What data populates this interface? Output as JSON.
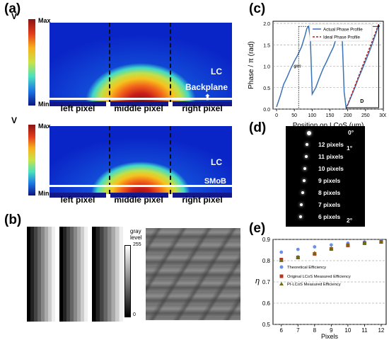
{
  "panel_a": {
    "label": "(a)",
    "colorbar": {
      "unit": "V",
      "max": "Max",
      "min": "Min"
    },
    "top": {
      "layer": "LC",
      "backplane": "Backplane"
    },
    "bottom": {
      "layer": "LC",
      "backplane": "SMoB"
    },
    "pixels": [
      "left pixel",
      "middle pixel",
      "right pixel"
    ]
  },
  "panel_b": {
    "label": "(b)",
    "colorbar": {
      "title_1": "gray",
      "title_2": "level",
      "max": "255",
      "min": "0"
    }
  },
  "panel_c": {
    "label": "(c)",
    "annot_phi": "φm",
    "annot_d": "d",
    "annot_D": "D",
    "chart_data": {
      "type": "line",
      "xlabel": "Position on LCoS (um)",
      "ylabel": "Phase / π (rad)",
      "xlim": [
        -10,
        300
      ],
      "ylim": [
        0,
        2.05
      ],
      "xticks": [
        "0",
        "50",
        "100",
        "150",
        "200",
        "250",
        "300"
      ],
      "yticks": [
        "0.0",
        "0.5",
        "1.0",
        "1.5",
        "2.0"
      ],
      "legend_position": "inside-top",
      "series": [
        {
          "name": "Actual Phase Profile",
          "color": "#3a73b8",
          "x": [
            0,
            10,
            20,
            30,
            40,
            50,
            60,
            70,
            80,
            85,
            90,
            95,
            100,
            110,
            120,
            130,
            140,
            150,
            160,
            170,
            175,
            180,
            185,
            190,
            195,
            200,
            210,
            220,
            230,
            240,
            250,
            260,
            270,
            280,
            285,
            290
          ],
          "y": [
            0.05,
            0.3,
            0.58,
            0.75,
            0.95,
            1.12,
            1.27,
            1.45,
            1.72,
            1.88,
            1.93,
            1.65,
            0.35,
            0.5,
            0.72,
            0.93,
            1.1,
            1.28,
            1.45,
            1.72,
            1.9,
            1.93,
            1.55,
            0.4,
            0.05,
            0.1,
            0.3,
            0.5,
            0.72,
            0.92,
            1.12,
            1.33,
            1.55,
            1.78,
            1.93,
            1.95
          ]
        },
        {
          "name": "Ideal Phase Profile",
          "color": "#b22222",
          "x": [
            195,
            287
          ],
          "y": [
            0,
            1.98
          ]
        }
      ]
    }
  },
  "panel_d": {
    "label": "(d)",
    "rows": [
      "0°",
      "12 pixels",
      "11 pixels",
      "10 pixels",
      "9 pixels",
      "8 pixels",
      "7 pixels",
      "6 pixels"
    ],
    "angle_1": "1°",
    "angle_2": "2°"
  },
  "panel_e": {
    "label": "(e)",
    "chart_data": {
      "type": "scatter",
      "xlabel": "Pixels",
      "ylabel": "η",
      "xlim": [
        5.5,
        12.3
      ],
      "ylim": [
        0.5,
        0.9
      ],
      "xticks": [
        "6",
        "7",
        "8",
        "9",
        "10",
        "11",
        "12"
      ],
      "yticks": [
        "0.5",
        "0.6",
        "0.7",
        "0.8",
        "0.9"
      ],
      "grid": "horizontal-dashed",
      "legend_position": "center-left",
      "x": [
        6,
        7,
        8,
        9,
        10,
        11,
        12
      ],
      "series": [
        {
          "name": "Theoretical Efficiency",
          "color": "#6b8fe6",
          "marker": "circle",
          "values": [
            0.84,
            0.853,
            0.865,
            0.874,
            0.882,
            0.888,
            0.893
          ]
        },
        {
          "name": "Original LCoS Measured Efficiency",
          "color": "#b5361c",
          "marker": "square",
          "values": [
            0.805,
            0.815,
            0.832,
            0.855,
            0.872,
            0.882,
            0.888
          ]
        },
        {
          "name": "PI-LCoS Measured Efficiency",
          "color": "#6d6d10",
          "marker": "triangle",
          "values": [
            0.802,
            0.818,
            0.836,
            0.858,
            0.875,
            0.885,
            0.89
          ]
        }
      ]
    }
  }
}
